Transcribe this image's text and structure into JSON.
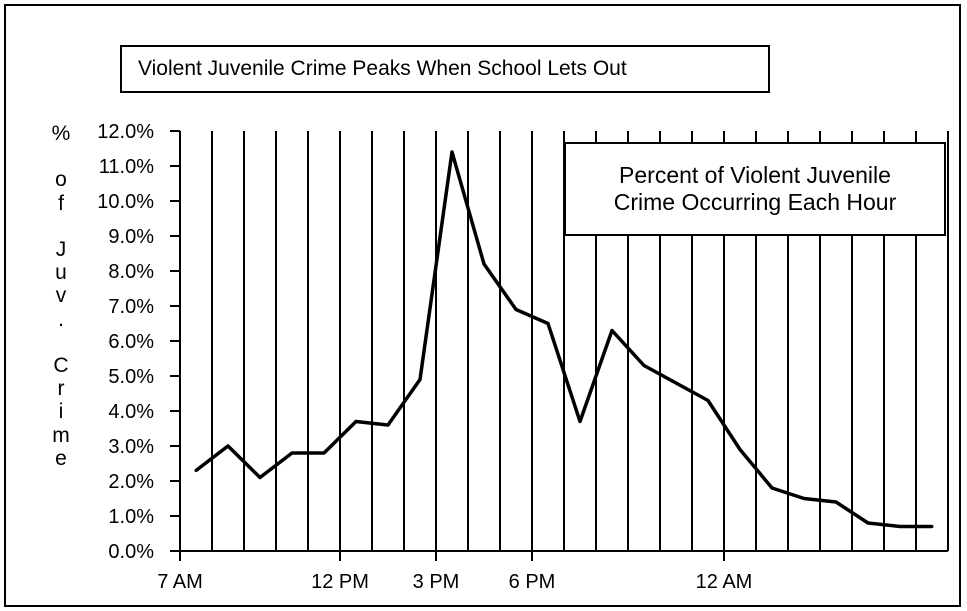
{
  "chart_data": {
    "type": "line",
    "title": "Violent Juvenile Crime Peaks When School Lets Out",
    "ylabel": "% of Juv. Crime",
    "legend": [
      "Percent of Violent Juvenile",
      "Crime Occurring Each Hour"
    ],
    "x_tick_labels": [
      {
        "label": "7 AM",
        "hour": 7
      },
      {
        "label": "12 PM",
        "hour": 12
      },
      {
        "label": "3 PM",
        "hour": 15
      },
      {
        "label": "6 PM",
        "hour": 18
      },
      {
        "label": "12 AM",
        "hour": 24
      }
    ],
    "y_tick_labels": [
      "0.0%",
      "1.0%",
      "2.0%",
      "3.0%",
      "4.0%",
      "5.0%",
      "6.0%",
      "7.0%",
      "8.0%",
      "9.0%",
      "10.0%",
      "11.0%",
      "12.0%"
    ],
    "ylim": [
      0,
      12
    ],
    "xlim": [
      7,
      31
    ],
    "grid": "vertical lines at each hour",
    "series": [
      {
        "x": [
          7.5,
          8.5,
          9.5,
          10.5,
          11.5,
          12.5,
          13.5,
          14.5,
          15.5,
          16.5,
          17.5,
          18.5,
          19.5,
          20.5,
          21.5,
          22.5,
          23.5,
          24.5,
          25.5,
          26.5,
          27.5,
          28.5,
          29.5,
          30.5
        ],
        "values": [
          2.3,
          3.0,
          2.1,
          2.8,
          2.8,
          3.7,
          3.6,
          4.9,
          11.4,
          8.2,
          6.9,
          6.5,
          3.7,
          6.3,
          5.3,
          4.8,
          4.3,
          2.9,
          1.8,
          1.5,
          1.4,
          0.8,
          0.7,
          0.7
        ]
      }
    ],
    "color": "#000000"
  }
}
